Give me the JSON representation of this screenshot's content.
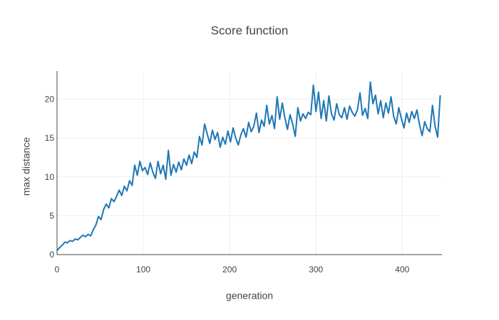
{
  "chart_data": {
    "type": "line",
    "title": "Score function",
    "x_label": "generation",
    "y_label": "max distance",
    "x": [
      0,
      3,
      6,
      9,
      12,
      15,
      18,
      21,
      24,
      27,
      30,
      33,
      36,
      39,
      42,
      45,
      48,
      51,
      54,
      57,
      60,
      63,
      66,
      69,
      72,
      75,
      78,
      81,
      84,
      87,
      90,
      93,
      96,
      99,
      102,
      105,
      108,
      111,
      114,
      117,
      120,
      123,
      126,
      129,
      132,
      135,
      138,
      141,
      144,
      147,
      150,
      153,
      156,
      159,
      162,
      165,
      168,
      171,
      174,
      177,
      180,
      183,
      186,
      189,
      192,
      195,
      198,
      201,
      204,
      207,
      210,
      213,
      216,
      219,
      222,
      225,
      228,
      231,
      234,
      237,
      240,
      243,
      246,
      249,
      252,
      255,
      258,
      261,
      264,
      267,
      270,
      273,
      276,
      279,
      282,
      285,
      288,
      291,
      294,
      297,
      300,
      303,
      306,
      309,
      312,
      315,
      318,
      321,
      324,
      327,
      330,
      333,
      336,
      339,
      342,
      345,
      348,
      351,
      354,
      357,
      360,
      363,
      366,
      369,
      372,
      375,
      378,
      381,
      384,
      387,
      390,
      393,
      396,
      399,
      402,
      405,
      408,
      411,
      414,
      417,
      420,
      423,
      426,
      429,
      432,
      435,
      438,
      441,
      444
    ],
    "series": [
      {
        "color": "#1f77b4",
        "values": [
          0.5,
          0.9,
          1.2,
          1.6,
          1.5,
          1.8,
          1.7,
          2.0,
          1.9,
          2.2,
          2.5,
          2.3,
          2.6,
          2.4,
          3.2,
          3.8,
          4.9,
          4.5,
          5.8,
          6.5,
          6.0,
          7.2,
          6.8,
          7.5,
          8.3,
          7.6,
          8.8,
          8.2,
          9.5,
          8.9,
          11.5,
          10.2,
          12.0,
          10.8,
          11.2,
          10.3,
          11.8,
          10.6,
          9.8,
          12.0,
          10.4,
          11.5,
          9.7,
          13.4,
          10.2,
          11.6,
          10.6,
          11.9,
          10.9,
          12.3,
          11.5,
          12.8,
          11.7,
          13.2,
          12.5,
          15.2,
          14.1,
          16.8,
          15.5,
          14.3,
          16.0,
          14.8,
          15.7,
          13.8,
          15.1,
          14.2,
          15.9,
          14.5,
          16.3,
          15.0,
          14.1,
          15.4,
          16.2,
          15.1,
          17.0,
          15.8,
          16.5,
          18.2,
          15.7,
          17.3,
          16.5,
          19.2,
          16.8,
          17.9,
          16.2,
          20.3,
          17.4,
          19.5,
          17.6,
          16.1,
          18.0,
          16.8,
          15.2,
          18.9,
          17.2,
          18.1,
          17.5,
          18.3,
          18.0,
          21.8,
          18.4,
          20.9,
          17.5,
          19.8,
          17.2,
          20.4,
          18.1,
          17.3,
          19.4,
          18.0,
          17.6,
          18.9,
          17.4,
          19.1,
          18.3,
          17.8,
          18.6,
          20.8,
          17.9,
          18.8,
          17.5,
          22.2,
          19.4,
          20.5,
          18.1,
          19.8,
          17.6,
          19.5,
          18.2,
          20.3,
          17.8,
          16.8,
          18.9,
          17.5,
          16.3,
          18.2,
          17.0,
          18.4,
          17.5,
          18.6,
          16.7,
          15.3,
          17.1,
          16.2,
          15.8,
          19.2,
          16.5,
          15.1,
          20.5
        ]
      }
    ],
    "xlim": [
      0,
      446
    ],
    "ylim": [
      0,
      23.6
    ],
    "xticks": [
      0,
      100,
      200,
      300,
      400
    ],
    "yticks": [
      0,
      5,
      10,
      15,
      20
    ],
    "grid": true
  }
}
